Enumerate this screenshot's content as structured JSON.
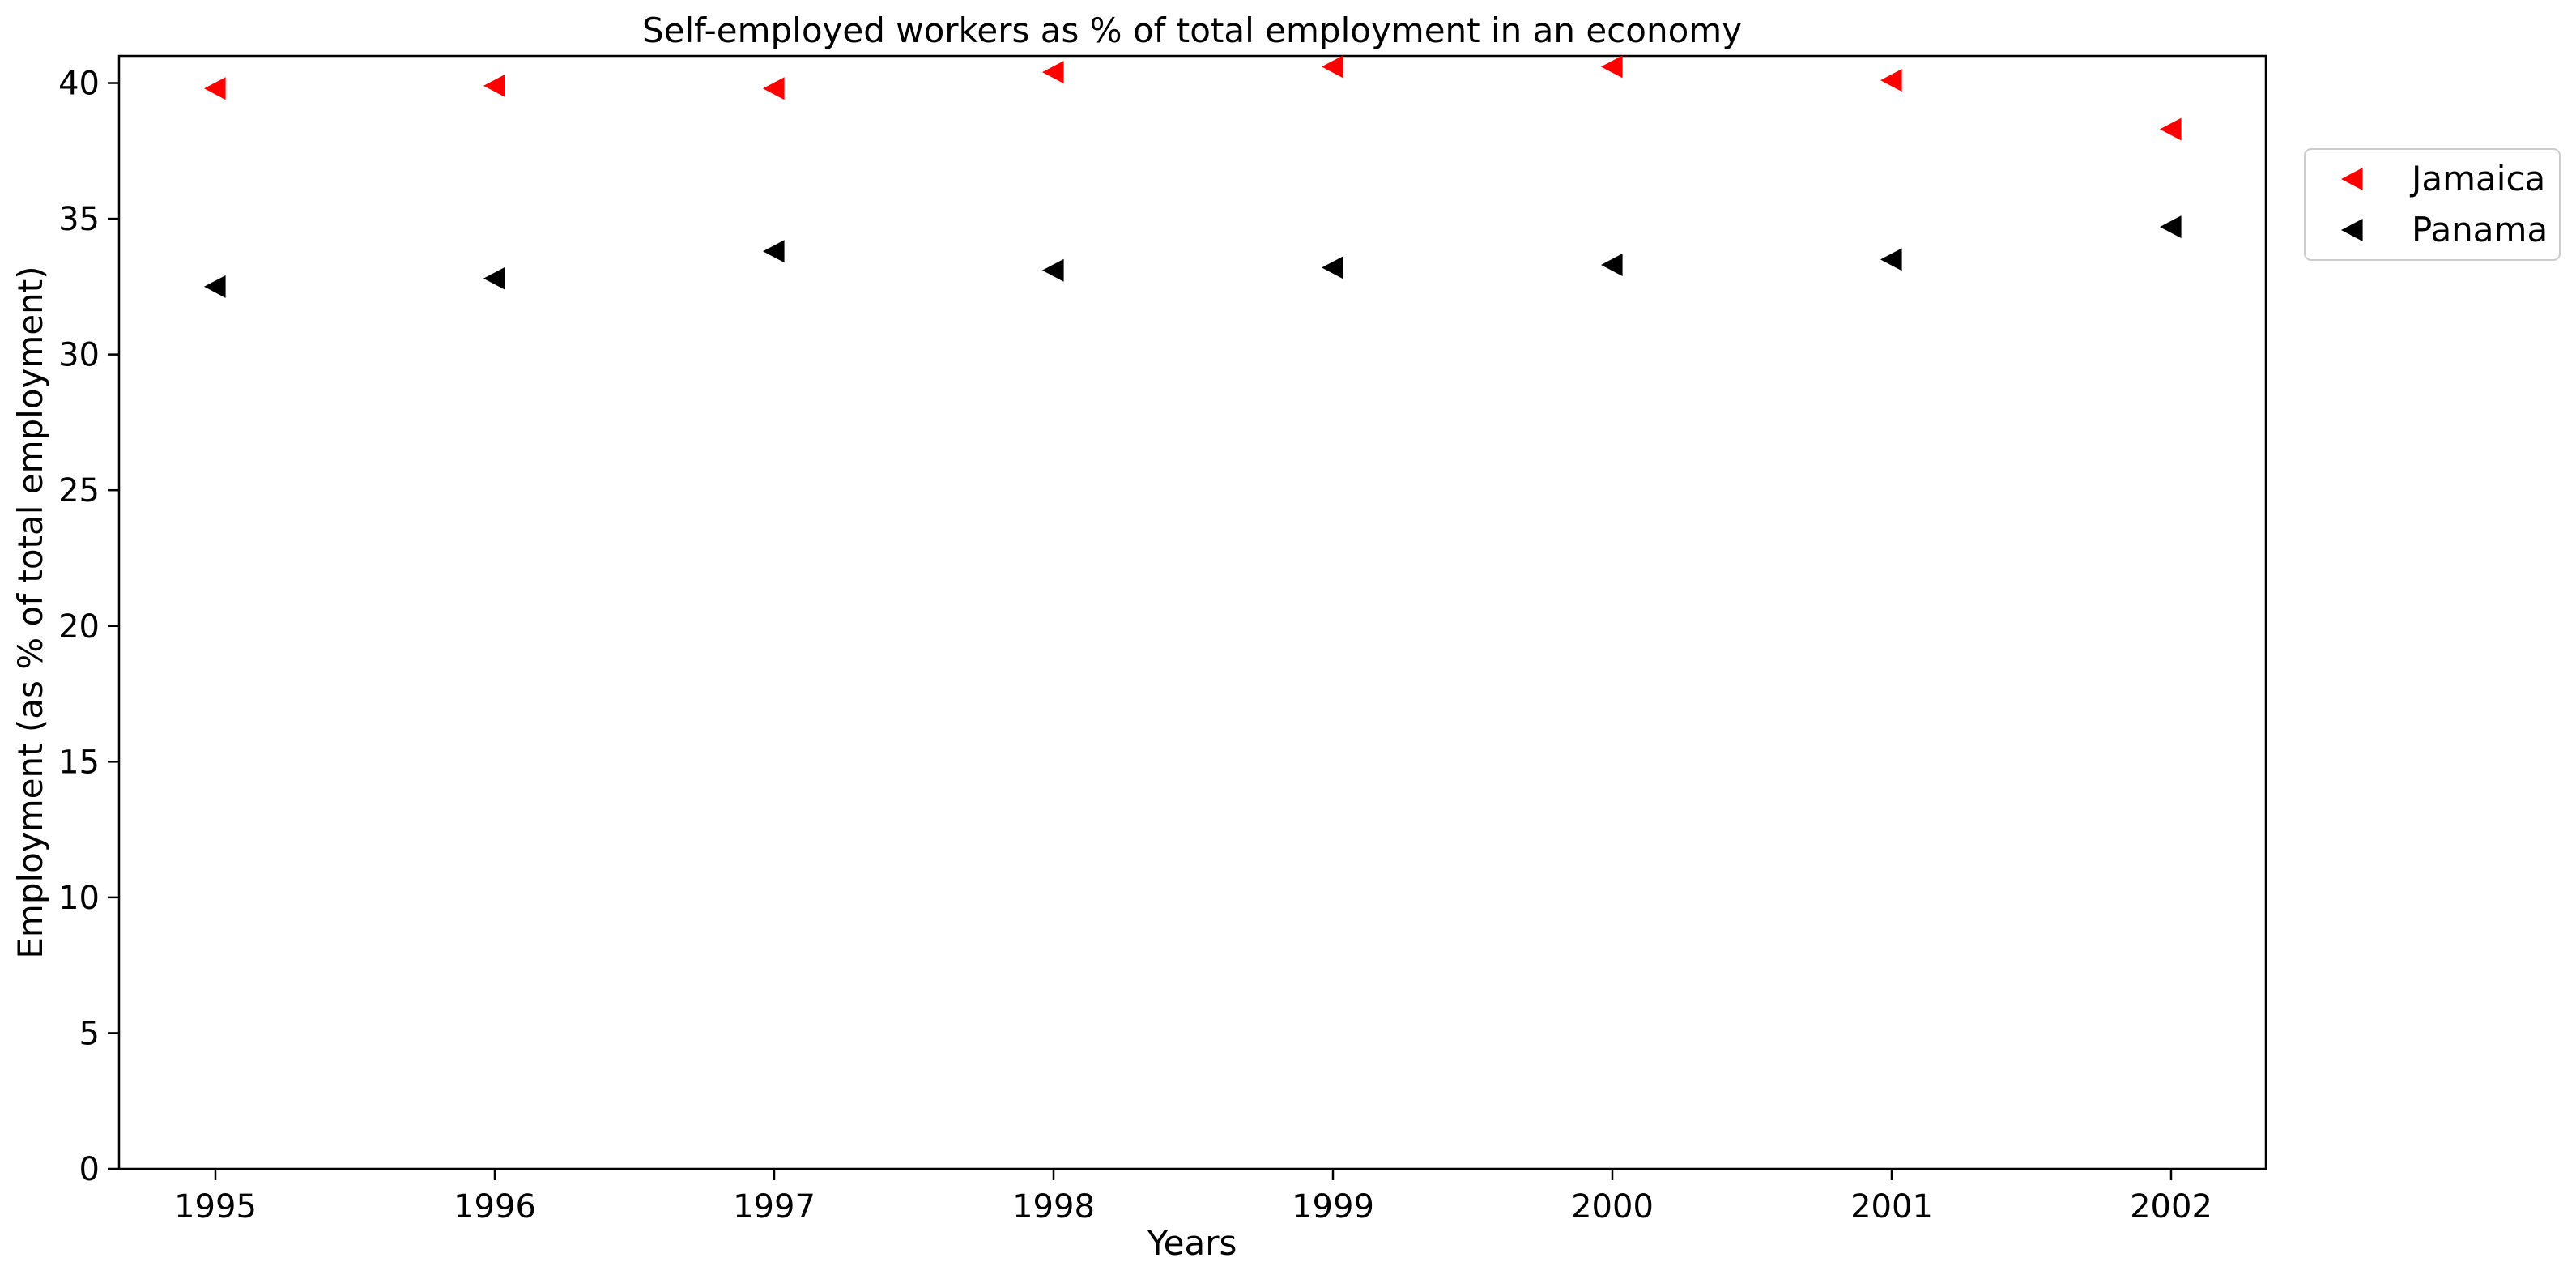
{
  "chart_data": {
    "type": "scatter",
    "title": "Self-employed workers as % of total employment in an economy",
    "xlabel": "Years",
    "ylabel": "Employment (as % of total employment)",
    "categories": [
      "1995",
      "1996",
      "1997",
      "1998",
      "1999",
      "2000",
      "2001",
      "2002"
    ],
    "ylim": [
      0,
      41
    ],
    "yticks": [
      0,
      5,
      10,
      15,
      20,
      25,
      30,
      35,
      40
    ],
    "grid": false,
    "legend_position": "outside-right-top",
    "marker": "triangle-left",
    "series": [
      {
        "name": "Jamaica",
        "color": "#ff0000",
        "values": [
          39.8,
          39.9,
          39.8,
          40.4,
          40.6,
          40.6,
          40.1,
          38.3
        ]
      },
      {
        "name": "Panama",
        "color": "#000000",
        "values": [
          32.5,
          32.8,
          33.8,
          33.1,
          33.2,
          33.3,
          33.5,
          34.7
        ]
      }
    ]
  }
}
